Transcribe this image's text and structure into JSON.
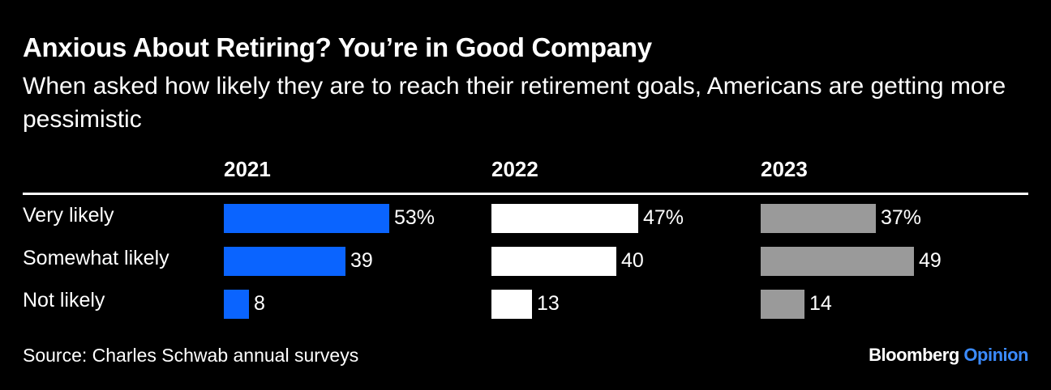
{
  "title": "Anxious About Retiring? You’re in Good Company",
  "subtitle": "When asked how likely they are to reach their retirement goals, Americans are getting more pessimistic",
  "source": "Source: Charles Schwab annual surveys",
  "brand": {
    "name": "Bloomberg",
    "suffix": "Opinion"
  },
  "chart_data": {
    "type": "bar",
    "orientation": "horizontal",
    "categories": [
      "Very likely",
      "Somewhat likely",
      "Not likely"
    ],
    "series": [
      {
        "name": "2021",
        "values": [
          53,
          39,
          8
        ],
        "labels": [
          "53%",
          "39",
          "8"
        ],
        "color": "#0a64ff"
      },
      {
        "name": "2022",
        "values": [
          47,
          40,
          13
        ],
        "labels": [
          "47%",
          "40",
          "13"
        ],
        "color": "#ffffff"
      },
      {
        "name": "2023",
        "values": [
          37,
          49,
          14
        ],
        "labels": [
          "37%",
          "49",
          "14"
        ],
        "color": "#9a9a9a"
      }
    ],
    "unit": "%"
  }
}
